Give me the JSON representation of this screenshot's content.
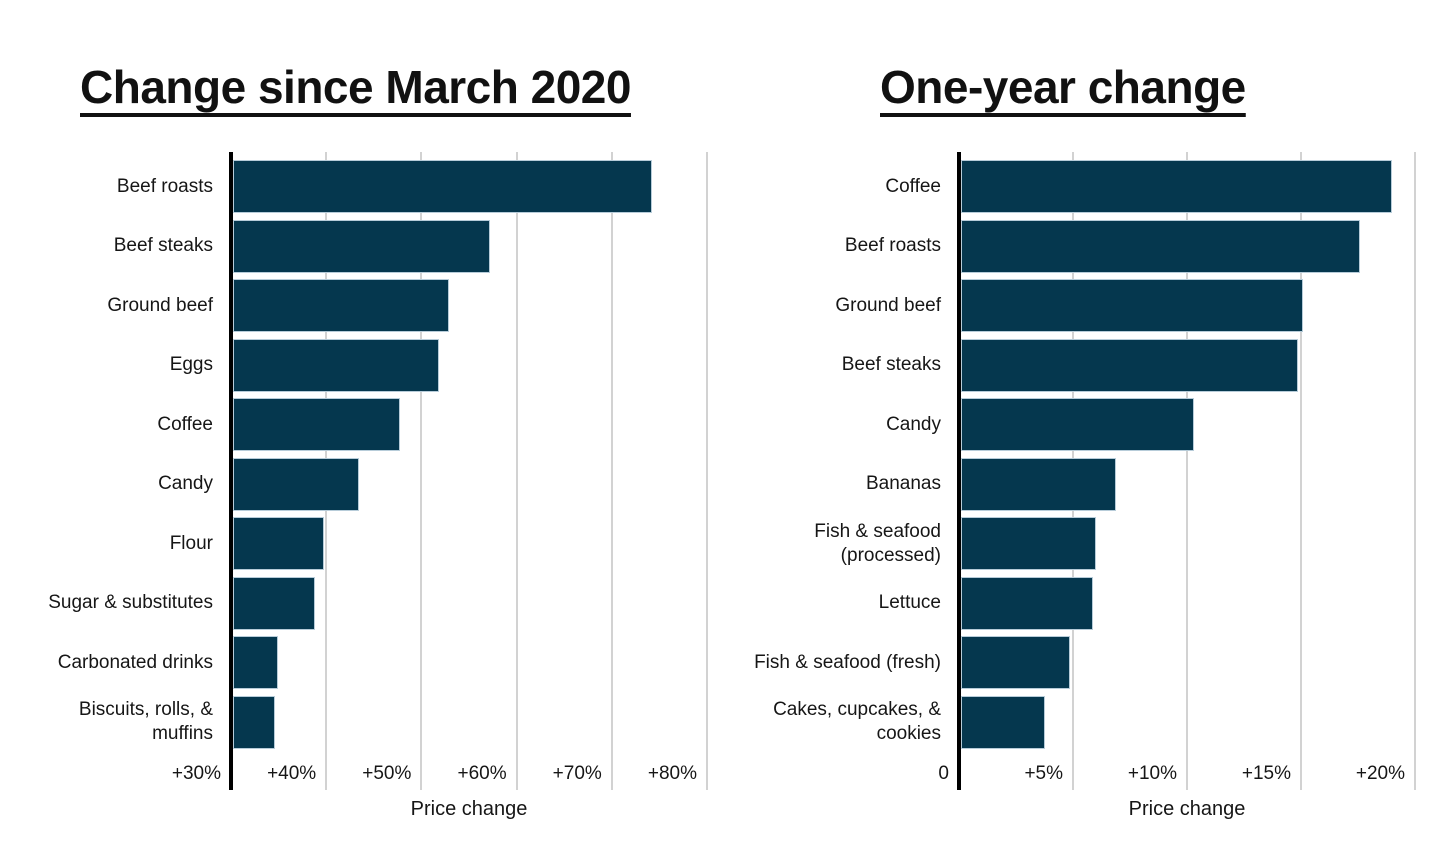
{
  "chart_data": [
    {
      "type": "bar",
      "orientation": "horizontal",
      "title": "Change since March 2020",
      "xlabel": "Price change",
      "xlim": [
        30,
        80
      ],
      "grid": true,
      "legend": "none",
      "tick_values": [
        30,
        40,
        50,
        60,
        70,
        80
      ],
      "tick_labels": [
        "+30%",
        "+40%",
        "+50%",
        "+60%",
        "+70%",
        "+80%"
      ],
      "categories": [
        "Beef roasts",
        "Beef steaks",
        "Ground beef",
        "Eggs",
        "Coffee",
        "Candy",
        "Flour",
        "Sugar & substitutes",
        "Carbonated drinks",
        "Biscuits, rolls, &\nmuffins"
      ],
      "values": [
        74,
        57,
        52.7,
        51.6,
        47.5,
        43.2,
        39.6,
        38.6,
        34.7,
        34.4
      ],
      "units": "percent"
    },
    {
      "type": "bar",
      "orientation": "horizontal",
      "title": "One-year change",
      "xlabel": "Price change",
      "xlim": [
        0,
        20
      ],
      "grid": true,
      "legend": "none",
      "tick_values": [
        0,
        5,
        10,
        15,
        20
      ],
      "tick_labels": [
        "0",
        "+5%",
        "+10%",
        "+15%",
        "+20%"
      ],
      "categories": [
        "Coffee",
        "Beef roasts",
        "Ground beef",
        "Beef steaks",
        "Candy",
        "Bananas",
        "Fish & seafood\n(processed)",
        "Lettuce",
        "Fish & seafood (fresh)",
        "Cakes, cupcakes, &\ncookies"
      ],
      "values": [
        18.9,
        17.5,
        15,
        14.8,
        10.2,
        6.8,
        5.9,
        5.8,
        4.8,
        3.7
      ],
      "units": "percent"
    }
  ],
  "colors": {
    "bar_fill": "#05374e",
    "bar_stroke": "#b7ccd9",
    "axis": "#000000",
    "gridline": "#d2d2d2",
    "text": "#1a1a1a",
    "background": "#ffffff"
  }
}
